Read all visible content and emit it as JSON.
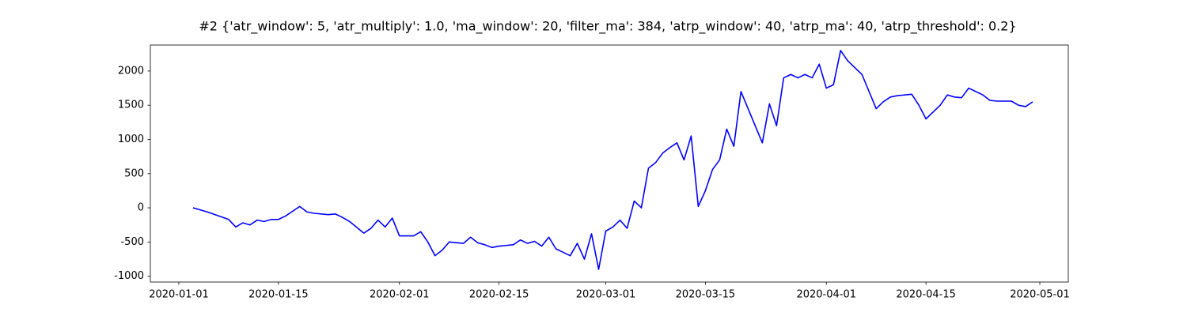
{
  "chart_data": {
    "type": "line",
    "title": "#2 {'atr_window': 5, 'atr_multiply': 1.0, 'ma_window': 20, 'filter_ma': 384, 'atrp_window': 40, 'atrp_ma': 40, 'atrp_threshold': 0.2}",
    "x": [
      "2020-01-03",
      "2020-01-04",
      "2020-01-05",
      "2020-01-08",
      "2020-01-09",
      "2020-01-10",
      "2020-01-11",
      "2020-01-12",
      "2020-01-13",
      "2020-01-14",
      "2020-01-15",
      "2020-01-16",
      "2020-01-17",
      "2020-01-18",
      "2020-01-19",
      "2020-01-20",
      "2020-01-22",
      "2020-01-23",
      "2020-01-24",
      "2020-01-25",
      "2020-01-27",
      "2020-01-28",
      "2020-01-29",
      "2020-01-30",
      "2020-01-31",
      "2020-02-01",
      "2020-02-03",
      "2020-02-04",
      "2020-02-05",
      "2020-02-06",
      "2020-02-07",
      "2020-02-08",
      "2020-02-10",
      "2020-02-11",
      "2020-02-12",
      "2020-02-13",
      "2020-02-14",
      "2020-02-15",
      "2020-02-17",
      "2020-02-18",
      "2020-02-19",
      "2020-02-20",
      "2020-02-21",
      "2020-02-22",
      "2020-02-23",
      "2020-02-24",
      "2020-02-25",
      "2020-02-26",
      "2020-02-27",
      "2020-02-28",
      "2020-02-29",
      "2020-03-01",
      "2020-03-02",
      "2020-03-03",
      "2020-03-04",
      "2020-03-05",
      "2020-03-06",
      "2020-03-07",
      "2020-03-08",
      "2020-03-09",
      "2020-03-10",
      "2020-03-11",
      "2020-03-12",
      "2020-03-13",
      "2020-03-14",
      "2020-03-15",
      "2020-03-16",
      "2020-03-17",
      "2020-03-18",
      "2020-03-19",
      "2020-03-20",
      "2020-03-21",
      "2020-03-22",
      "2020-03-23",
      "2020-03-24",
      "2020-03-25",
      "2020-03-26",
      "2020-03-27",
      "2020-03-28",
      "2020-03-29",
      "2020-03-30",
      "2020-03-31",
      "2020-04-01",
      "2020-04-02",
      "2020-04-03",
      "2020-04-04",
      "2020-04-05",
      "2020-04-06",
      "2020-04-07",
      "2020-04-08",
      "2020-04-09",
      "2020-04-10",
      "2020-04-11",
      "2020-04-13",
      "2020-04-14",
      "2020-04-15",
      "2020-04-16",
      "2020-04-17",
      "2020-04-18",
      "2020-04-19",
      "2020-04-20",
      "2020-04-21",
      "2020-04-22",
      "2020-04-23",
      "2020-04-24",
      "2020-04-25",
      "2020-04-27",
      "2020-04-28",
      "2020-04-29",
      "2020-04-30"
    ],
    "series": [
      {
        "color": "#0000ff",
        "values": [
          0,
          -30,
          -60,
          -170,
          -280,
          -220,
          -250,
          -180,
          -200,
          -170,
          -170,
          -120,
          -50,
          20,
          -60,
          -80,
          -100,
          -90,
          -140,
          -200,
          -370,
          -300,
          -180,
          -280,
          -150,
          -410,
          -410,
          -350,
          -500,
          -700,
          -620,
          -500,
          -520,
          -430,
          -510,
          -540,
          -580,
          -560,
          -540,
          -470,
          -520,
          -490,
          -560,
          -430,
          -600,
          -650,
          -700,
          -520,
          -750,
          -380,
          -900,
          -340,
          -280,
          -180,
          -300,
          100,
          0,
          580,
          660,
          800,
          880,
          950,
          700,
          1050,
          20,
          250,
          560,
          700,
          1150,
          900,
          1700,
          1450,
          1200,
          950,
          1520,
          1200,
          1900,
          1950,
          1900,
          1950,
          1900,
          2100,
          1750,
          1800,
          2300,
          2150,
          2050,
          1950,
          1700,
          1450,
          1550,
          1620,
          1640,
          1660,
          1500,
          1300,
          1400,
          1500,
          1650,
          1620,
          1610,
          1750,
          1700,
          1650,
          1570,
          1560,
          1560,
          1500,
          1480,
          1550
        ]
      }
    ],
    "xlim": [
      "2019-12-28",
      "2020-05-05"
    ],
    "xticks": [
      "2020-01-01",
      "2020-01-15",
      "2020-02-01",
      "2020-02-15",
      "2020-03-01",
      "2020-03-15",
      "2020-04-01",
      "2020-04-15",
      "2020-05-01"
    ],
    "ylim": [
      -1085,
      2380
    ],
    "yticks": [
      -1000,
      -500,
      0,
      500,
      1000,
      1500,
      2000
    ],
    "grid": false
  }
}
